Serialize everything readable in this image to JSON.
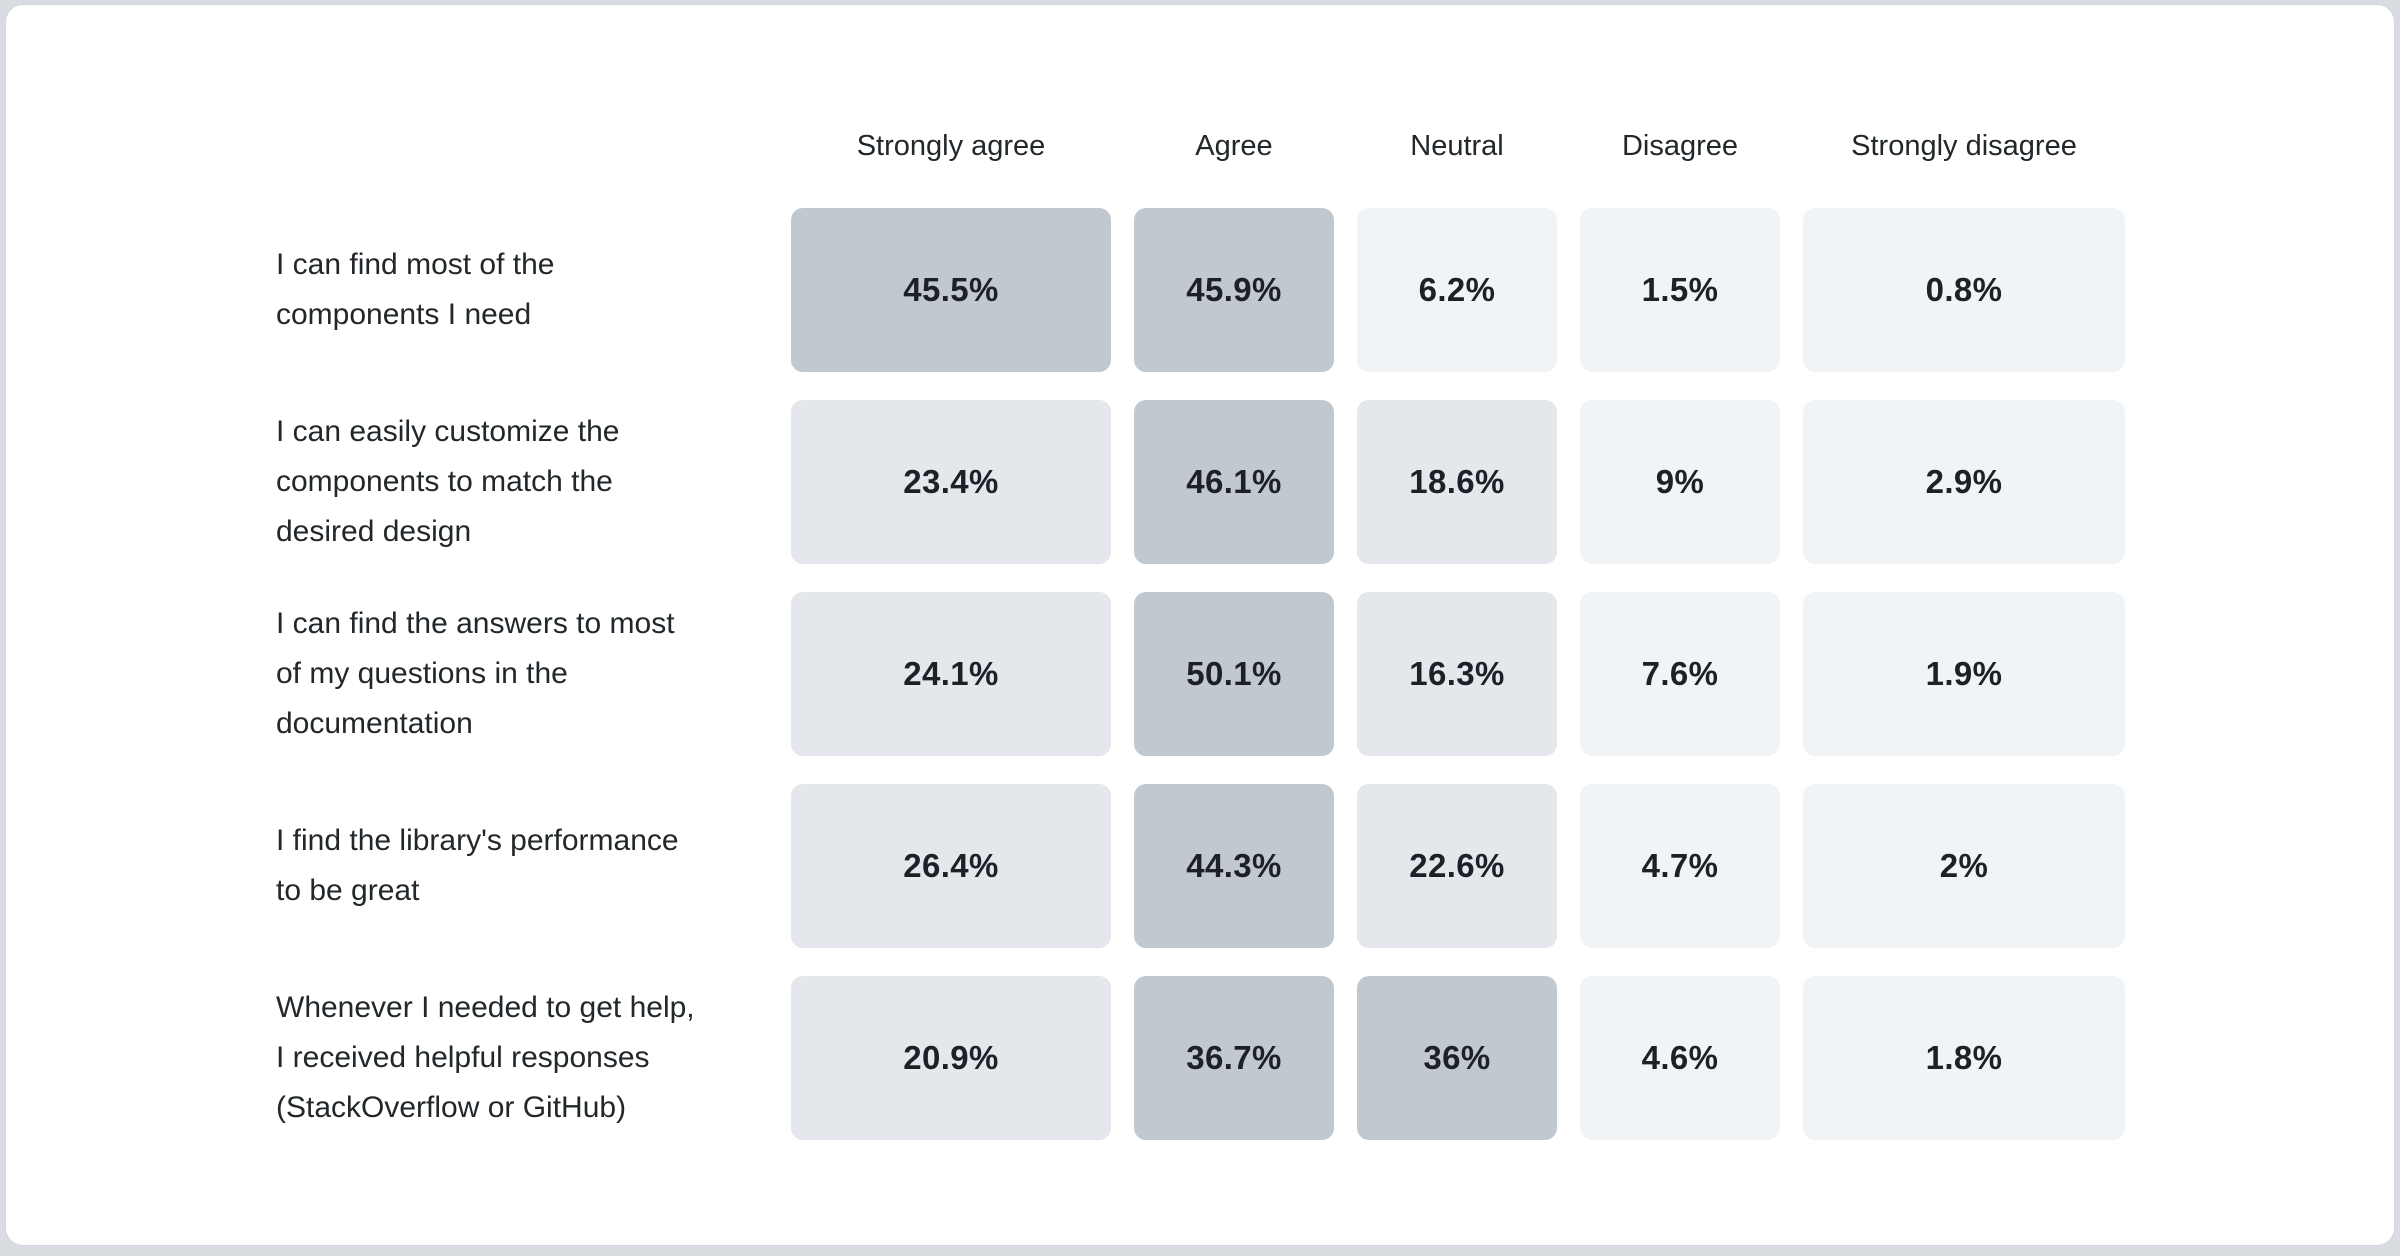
{
  "page": {
    "background": "#d9dde1",
    "card_background": "#ffffff"
  },
  "chart_data": {
    "type": "heatmap",
    "columns": [
      "Strongly agree",
      "Agree",
      "Neutral",
      "Disagree",
      "Strongly disagree"
    ],
    "rows": [
      {
        "label": "I can find most of the components I need",
        "display": [
          "45.5%",
          "45.9%",
          "6.2%",
          "1.5%",
          "0.8%"
        ],
        "values": [
          45.5,
          45.9,
          6.2,
          1.5,
          0.8
        ]
      },
      {
        "label": "I can easily customize the components to match the desired design",
        "display": [
          "23.4%",
          "46.1%",
          "18.6%",
          "9%",
          "2.9%"
        ],
        "values": [
          23.4,
          46.1,
          18.6,
          9,
          2.9
        ]
      },
      {
        "label": "I can find the answers to most of my questions in the documentation",
        "display": [
          "24.1%",
          "50.1%",
          "16.3%",
          "7.6%",
          "1.9%"
        ],
        "values": [
          24.1,
          50.1,
          16.3,
          7.6,
          1.9
        ]
      },
      {
        "label": "I find the library's performance to be great",
        "display": [
          "26.4%",
          "44.3%",
          "22.6%",
          "4.7%",
          "2%"
        ],
        "values": [
          26.4,
          44.3,
          22.6,
          4.7,
          2
        ]
      },
      {
        "label": "Whenever I needed to get help, I received helpful responses (StackOverflow or GitHub)",
        "display": [
          "20.9%",
          "36.7%",
          "36%",
          "4.6%",
          "1.8%"
        ],
        "values": [
          20.9,
          36.7,
          36,
          4.6,
          1.8
        ]
      }
    ],
    "color_scale": {
      "low": "#f1f4f7",
      "mid": "#e4e7eb",
      "high": "#c1c8cf"
    },
    "thresholds": {
      "mid_min": 10,
      "high_min": 30
    },
    "grid": false,
    "legend_position": "none"
  }
}
